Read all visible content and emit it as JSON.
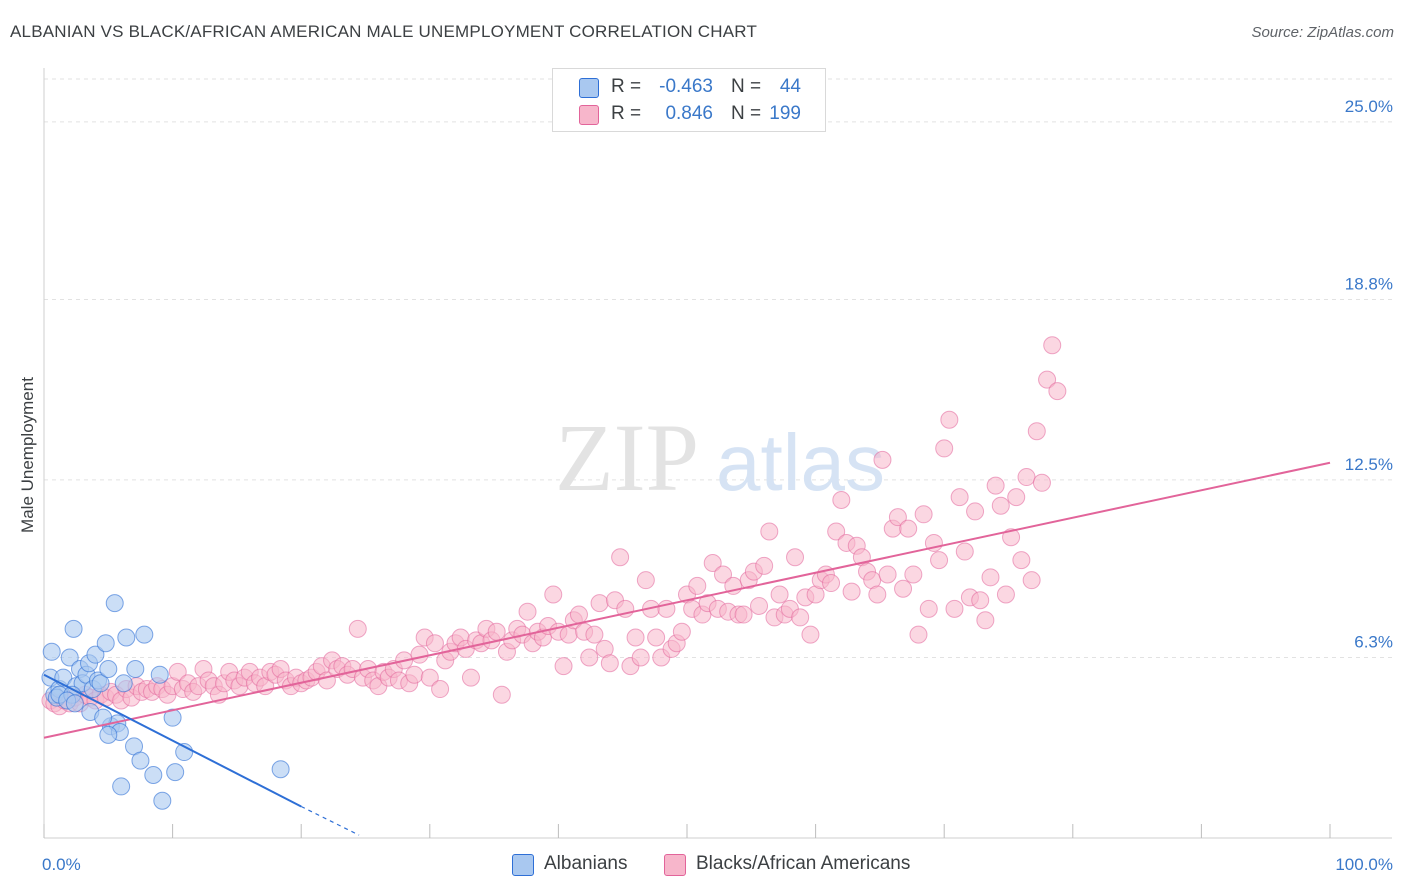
{
  "title": "ALBANIAN VS BLACK/AFRICAN AMERICAN MALE UNEMPLOYMENT CORRELATION CHART",
  "source": "Source: ZipAtlas.com",
  "watermark": {
    "zip": "ZIP",
    "atlas": "atlas"
  },
  "legend_top": {
    "rows": [
      {
        "r_label": "R =",
        "r_value": "-0.463",
        "n_label": "N =",
        "n_value": "44",
        "color": "#a9c8f0"
      },
      {
        "r_label": "R =",
        "r_value": "0.846",
        "n_label": "N =",
        "n_value": "199",
        "color": "#f7b6cb"
      }
    ]
  },
  "legend_bottom": {
    "items": [
      {
        "label": "Albanians",
        "color": "#a9c8f0"
      },
      {
        "label": "Blacks/African Americans",
        "color": "#f7b6cb"
      }
    ]
  },
  "chart_data": {
    "type": "scatter",
    "title": "ALBANIAN VS BLACK/AFRICAN AMERICAN MALE UNEMPLOYMENT CORRELATION CHART",
    "xlabel": "",
    "ylabel": "Male Unemployment",
    "xlim": [
      0,
      100
    ],
    "ylim": [
      0,
      26.6
    ],
    "x_tick_labels": [
      "0.0%",
      "100.0%"
    ],
    "y_ticks": [
      {
        "value": 6.3,
        "label": "6.3%"
      },
      {
        "value": 12.5,
        "label": "12.5%"
      },
      {
        "value": 18.8,
        "label": "18.8%"
      },
      {
        "value": 25.0,
        "label": "25.0%"
      }
    ],
    "grid": "horizontal-dashed",
    "legend_position": "top-center",
    "colors": {
      "albanians": "#a9c8f0",
      "albanians_line": "#2e6fd6",
      "blacks": "#f7b6cb",
      "blacks_line": "#e2649a",
      "tick_label": "#3a78c9"
    },
    "series": [
      {
        "name": "Albanians",
        "r": -0.463,
        "n": 44,
        "trend": {
          "x0": 0,
          "y0": 5.7,
          "x1": 20,
          "y1": 1.1,
          "dash_to_x": 24.5,
          "dash_to_y": 0.1
        },
        "points": [
          [
            0.5,
            5.6
          ],
          [
            0.8,
            5.0
          ],
          [
            1.2,
            5.2
          ],
          [
            1.0,
            4.9
          ],
          [
            0.6,
            6.5
          ],
          [
            1.5,
            5.6
          ],
          [
            2.0,
            6.3
          ],
          [
            2.3,
            7.3
          ],
          [
            2.5,
            5.3
          ],
          [
            2.8,
            5.9
          ],
          [
            3.0,
            5.4
          ],
          [
            3.3,
            5.7
          ],
          [
            3.5,
            6.1
          ],
          [
            3.6,
            4.4
          ],
          [
            3.8,
            5.2
          ],
          [
            4.0,
            6.4
          ],
          [
            4.2,
            5.5
          ],
          [
            4.4,
            5.4
          ],
          [
            4.8,
            6.8
          ],
          [
            5.0,
            5.9
          ],
          [
            5.2,
            3.9
          ],
          [
            5.5,
            8.2
          ],
          [
            5.7,
            4.0
          ],
          [
            5.9,
            3.7
          ],
          [
            6.2,
            5.4
          ],
          [
            6.4,
            7.0
          ],
          [
            7.0,
            3.2
          ],
          [
            7.1,
            5.9
          ],
          [
            7.5,
            2.7
          ],
          [
            7.8,
            7.1
          ],
          [
            8.5,
            2.2
          ],
          [
            9.0,
            5.7
          ],
          [
            9.2,
            1.3
          ],
          [
            10.0,
            4.2
          ],
          [
            10.2,
            2.3
          ],
          [
            10.9,
            3.0
          ],
          [
            4.6,
            4.2
          ],
          [
            5.0,
            3.6
          ],
          [
            6.0,
            1.8
          ],
          [
            1.2,
            5.0
          ],
          [
            2.2,
            5.0
          ],
          [
            1.8,
            4.8
          ],
          [
            2.4,
            4.7
          ],
          [
            18.4,
            2.4
          ]
        ]
      },
      {
        "name": "Blacks/African Americans",
        "r": 0.846,
        "n": 199,
        "trend": {
          "x0": 0,
          "y0": 3.5,
          "x1": 100,
          "y1": 13.1
        },
        "points": [
          [
            0.5,
            4.8
          ],
          [
            0.8,
            4.7
          ],
          [
            1.2,
            4.6
          ],
          [
            1.6,
            4.8
          ],
          [
            2.0,
            4.7
          ],
          [
            2.4,
            4.9
          ],
          [
            2.8,
            4.7
          ],
          [
            3.2,
            5.0
          ],
          [
            3.6,
            4.9
          ],
          [
            4.0,
            4.8
          ],
          [
            4.4,
            5.0
          ],
          [
            4.8,
            4.9
          ],
          [
            5.2,
            5.1
          ],
          [
            5.6,
            5.0
          ],
          [
            6.0,
            4.8
          ],
          [
            6.4,
            5.2
          ],
          [
            6.8,
            4.9
          ],
          [
            7.2,
            5.3
          ],
          [
            7.6,
            5.1
          ],
          [
            8.0,
            5.2
          ],
          [
            8.4,
            5.1
          ],
          [
            8.8,
            5.3
          ],
          [
            9.2,
            5.2
          ],
          [
            9.6,
            5.0
          ],
          [
            10.0,
            5.3
          ],
          [
            10.4,
            5.8
          ],
          [
            10.8,
            5.2
          ],
          [
            11.2,
            5.4
          ],
          [
            11.6,
            5.1
          ],
          [
            12.0,
            5.3
          ],
          [
            12.4,
            5.9
          ],
          [
            12.8,
            5.5
          ],
          [
            13.2,
            5.3
          ],
          [
            13.6,
            5.0
          ],
          [
            14.0,
            5.4
          ],
          [
            14.4,
            5.8
          ],
          [
            14.8,
            5.5
          ],
          [
            15.2,
            5.3
          ],
          [
            15.6,
            5.6
          ],
          [
            16.0,
            5.8
          ],
          [
            16.4,
            5.4
          ],
          [
            16.8,
            5.6
          ],
          [
            17.2,
            5.3
          ],
          [
            17.6,
            5.8
          ],
          [
            18.0,
            5.7
          ],
          [
            18.4,
            5.9
          ],
          [
            18.8,
            5.5
          ],
          [
            19.2,
            5.3
          ],
          [
            19.6,
            5.6
          ],
          [
            20.0,
            5.4
          ],
          [
            20.4,
            5.5
          ],
          [
            20.8,
            5.6
          ],
          [
            21.2,
            5.8
          ],
          [
            21.6,
            6.0
          ],
          [
            22.0,
            5.5
          ],
          [
            22.4,
            6.2
          ],
          [
            22.8,
            5.9
          ],
          [
            23.2,
            6.0
          ],
          [
            23.6,
            5.7
          ],
          [
            24.0,
            5.9
          ],
          [
            24.4,
            7.3
          ],
          [
            24.8,
            5.6
          ],
          [
            25.2,
            5.9
          ],
          [
            25.6,
            5.5
          ],
          [
            26.0,
            5.3
          ],
          [
            26.4,
            5.8
          ],
          [
            26.8,
            5.6
          ],
          [
            27.2,
            5.9
          ],
          [
            27.6,
            5.5
          ],
          [
            28.0,
            6.2
          ],
          [
            28.4,
            5.4
          ],
          [
            28.8,
            5.7
          ],
          [
            29.2,
            6.4
          ],
          [
            29.6,
            7.0
          ],
          [
            30.0,
            5.6
          ],
          [
            30.4,
            6.8
          ],
          [
            30.8,
            5.2
          ],
          [
            31.2,
            6.2
          ],
          [
            31.6,
            6.5
          ],
          [
            32.0,
            6.8
          ],
          [
            32.4,
            7.0
          ],
          [
            32.8,
            6.6
          ],
          [
            33.2,
            5.6
          ],
          [
            33.6,
            6.9
          ],
          [
            34.0,
            6.8
          ],
          [
            34.4,
            7.3
          ],
          [
            34.8,
            6.9
          ],
          [
            35.2,
            7.2
          ],
          [
            35.6,
            5.0
          ],
          [
            36.0,
            6.5
          ],
          [
            36.4,
            6.9
          ],
          [
            36.8,
            7.3
          ],
          [
            37.2,
            7.1
          ],
          [
            37.6,
            7.9
          ],
          [
            38.0,
            6.8
          ],
          [
            38.4,
            7.2
          ],
          [
            38.8,
            7.0
          ],
          [
            39.2,
            7.4
          ],
          [
            39.6,
            8.5
          ],
          [
            40.0,
            7.2
          ],
          [
            40.4,
            6.0
          ],
          [
            40.8,
            7.1
          ],
          [
            41.2,
            7.6
          ],
          [
            41.6,
            7.8
          ],
          [
            42.0,
            7.2
          ],
          [
            42.4,
            6.3
          ],
          [
            42.8,
            7.1
          ],
          [
            43.2,
            8.2
          ],
          [
            43.6,
            6.6
          ],
          [
            44.0,
            6.1
          ],
          [
            44.4,
            8.3
          ],
          [
            44.8,
            9.8
          ],
          [
            45.2,
            8.0
          ],
          [
            45.6,
            6.0
          ],
          [
            46.0,
            7.0
          ],
          [
            46.4,
            6.3
          ],
          [
            46.8,
            9.0
          ],
          [
            47.2,
            8.0
          ],
          [
            47.6,
            7.0
          ],
          [
            48.0,
            6.3
          ],
          [
            48.4,
            8.0
          ],
          [
            48.8,
            6.6
          ],
          [
            49.2,
            6.8
          ],
          [
            49.6,
            7.2
          ],
          [
            50.0,
            8.5
          ],
          [
            50.4,
            8.0
          ],
          [
            50.8,
            8.8
          ],
          [
            51.2,
            7.8
          ],
          [
            51.6,
            8.2
          ],
          [
            52.0,
            9.6
          ],
          [
            52.4,
            8.0
          ],
          [
            52.8,
            9.2
          ],
          [
            53.2,
            7.9
          ],
          [
            53.6,
            8.8
          ],
          [
            54.0,
            7.8
          ],
          [
            54.4,
            7.8
          ],
          [
            54.8,
            9.0
          ],
          [
            55.2,
            9.3
          ],
          [
            55.6,
            8.1
          ],
          [
            56.0,
            9.5
          ],
          [
            56.4,
            10.7
          ],
          [
            56.8,
            7.7
          ],
          [
            57.2,
            8.5
          ],
          [
            57.6,
            7.8
          ],
          [
            58.0,
            8.0
          ],
          [
            58.4,
            9.8
          ],
          [
            58.8,
            7.7
          ],
          [
            59.2,
            8.4
          ],
          [
            59.6,
            7.1
          ],
          [
            60.0,
            8.5
          ],
          [
            60.4,
            9.0
          ],
          [
            60.8,
            9.2
          ],
          [
            61.2,
            8.9
          ],
          [
            61.6,
            10.7
          ],
          [
            62.0,
            11.8
          ],
          [
            62.4,
            10.3
          ],
          [
            62.8,
            8.6
          ],
          [
            63.2,
            10.2
          ],
          [
            63.6,
            9.8
          ],
          [
            64.0,
            9.3
          ],
          [
            64.4,
            9.0
          ],
          [
            64.8,
            8.5
          ],
          [
            65.2,
            13.2
          ],
          [
            65.6,
            9.2
          ],
          [
            66.0,
            10.8
          ],
          [
            66.4,
            11.2
          ],
          [
            66.8,
            8.7
          ],
          [
            67.2,
            10.8
          ],
          [
            67.6,
            9.2
          ],
          [
            68.0,
            7.1
          ],
          [
            68.4,
            11.3
          ],
          [
            68.8,
            8.0
          ],
          [
            69.2,
            10.3
          ],
          [
            69.6,
            9.7
          ],
          [
            70.0,
            13.6
          ],
          [
            70.4,
            14.6
          ],
          [
            70.8,
            8.0
          ],
          [
            71.2,
            11.9
          ],
          [
            71.6,
            10.0
          ],
          [
            72.0,
            8.4
          ],
          [
            72.4,
            11.4
          ],
          [
            72.8,
            8.3
          ],
          [
            73.2,
            7.6
          ],
          [
            73.6,
            9.1
          ],
          [
            74.0,
            12.3
          ],
          [
            74.4,
            11.6
          ],
          [
            74.8,
            8.5
          ],
          [
            75.2,
            10.5
          ],
          [
            75.6,
            11.9
          ],
          [
            76.0,
            9.7
          ],
          [
            76.4,
            12.6
          ],
          [
            76.8,
            9.0
          ],
          [
            77.2,
            14.2
          ],
          [
            77.6,
            12.4
          ],
          [
            78.0,
            16.0
          ],
          [
            78.4,
            17.2
          ],
          [
            78.8,
            15.6
          ]
        ]
      }
    ]
  }
}
